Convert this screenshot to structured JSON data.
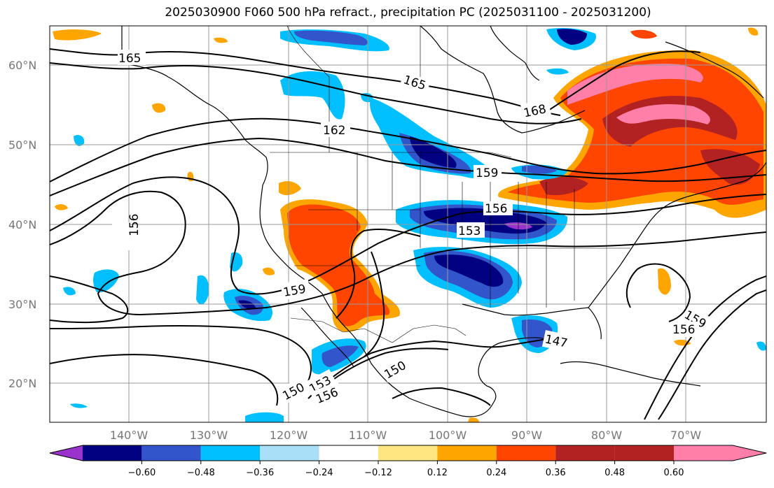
{
  "title": "2025030900 F060 500 hPa refract., precipitation PC (2025031100 - 2025031200)",
  "map": {
    "lat_labels": [
      "20°N",
      "30°N",
      "40°N",
      "50°N",
      "60°N"
    ],
    "lon_labels": [
      "140°W",
      "130°W",
      "120°W",
      "110°W",
      "100°W",
      "90°W",
      "80°W",
      "70°W"
    ]
  },
  "contour_labels": [
    "165",
    "165",
    "168",
    "162",
    "159",
    "156",
    "153",
    "156",
    "159",
    "147",
    "150",
    "150",
    "153",
    "156",
    "159",
    "156"
  ],
  "colorbar": {
    "labels": [
      "−0.60",
      "−0.48",
      "−0.36",
      "−0.24",
      "−0.12",
      "0.12",
      "0.24",
      "0.36",
      "0.48",
      "0.60"
    ],
    "colors": [
      "#9933cc",
      "#000080",
      "#3355cc",
      "#00bfff",
      "#aadff8",
      "#ffffff",
      "#ffe680",
      "#ffa500",
      "#ff4500",
      "#b22222",
      "#ff7fa8"
    ]
  }
}
